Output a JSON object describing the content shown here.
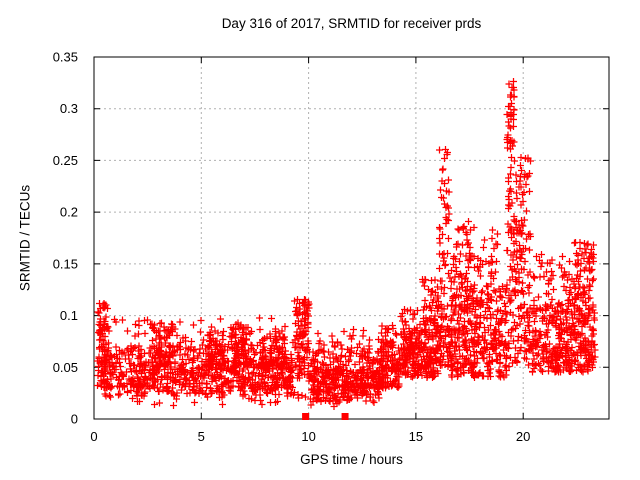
{
  "chart_data": {
    "type": "scatter",
    "title": "Day 316 of 2017, SRMTID for receiver prds",
    "xlabel": "GPS time / hours",
    "ylabel": "SRMTID / TECUs",
    "xlim": [
      0,
      24
    ],
    "ylim": [
      0,
      0.35
    ],
    "x_ticks": [
      {
        "v": 0,
        "label": "0"
      },
      {
        "v": 5,
        "label": "5"
      },
      {
        "v": 10,
        "label": "10"
      },
      {
        "v": 15,
        "label": "15"
      },
      {
        "v": 20,
        "label": "20"
      }
    ],
    "y_ticks": [
      {
        "v": 0,
        "label": "0"
      },
      {
        "v": 0.05,
        "label": "0.05"
      },
      {
        "v": 0.1,
        "label": "0.1"
      },
      {
        "v": 0.15,
        "label": "0.15"
      },
      {
        "v": 0.2,
        "label": "0.2"
      },
      {
        "v": 0.25,
        "label": "0.25"
      },
      {
        "v": 0.3,
        "label": "0.3"
      },
      {
        "v": 0.35,
        "label": "0.35"
      }
    ],
    "grid": true,
    "legend": false,
    "colors": {
      "marker": "#ff0000",
      "grid": "#b0b0b0",
      "axis": "#000000",
      "background": "#ffffff"
    },
    "marker": {
      "shape": "plus",
      "size": 7
    },
    "flag_points": {
      "shape": "filled-square",
      "size": 7,
      "points": [
        [
          9.86,
          0
        ],
        [
          11.7,
          0
        ]
      ]
    },
    "seed": 316,
    "point_clusters": [
      {
        "x0": 0.15,
        "x1": 0.68,
        "n": 70,
        "bands": [
          [
            0.032,
            0.07,
            0.5
          ],
          [
            0.07,
            0.1,
            0.3
          ],
          [
            0.1,
            0.112,
            0.2
          ]
        ]
      },
      {
        "x0": 0.3,
        "x1": 9.3,
        "n": 850,
        "bands": [
          [
            0.03,
            0.055,
            0.58
          ],
          [
            0.022,
            0.032,
            0.13
          ],
          [
            0.055,
            0.072,
            0.2
          ],
          [
            0.072,
            0.098,
            0.09
          ]
        ]
      },
      {
        "x0": 2.7,
        "x1": 3.7,
        "n": 70,
        "bands": [
          [
            0.05,
            0.075,
            0.6
          ],
          [
            0.075,
            0.093,
            0.4
          ]
        ]
      },
      {
        "x0": 5.3,
        "x1": 6.1,
        "n": 50,
        "bands": [
          [
            0.048,
            0.065,
            0.7
          ],
          [
            0.065,
            0.082,
            0.3
          ]
        ]
      },
      {
        "x0": 6.4,
        "x1": 7.15,
        "n": 55,
        "bands": [
          [
            0.05,
            0.07,
            0.6
          ],
          [
            0.07,
            0.092,
            0.4
          ]
        ]
      },
      {
        "x0": 7.6,
        "x1": 8.45,
        "n": 45,
        "bands": [
          [
            0.048,
            0.062,
            0.65
          ],
          [
            0.062,
            0.08,
            0.35
          ]
        ]
      },
      {
        "x0": 8.45,
        "x1": 9.0,
        "n": 35,
        "bands": [
          [
            0.05,
            0.07,
            0.6
          ],
          [
            0.07,
            0.09,
            0.4
          ]
        ]
      },
      {
        "x0": 9.35,
        "x1": 10.05,
        "n": 110,
        "bands": [
          [
            0.035,
            0.06,
            0.35
          ],
          [
            0.06,
            0.09,
            0.35
          ],
          [
            0.09,
            0.116,
            0.3
          ]
        ]
      },
      {
        "x0": 10.05,
        "x1": 13.3,
        "n": 400,
        "bands": [
          [
            0.025,
            0.048,
            0.6
          ],
          [
            0.016,
            0.025,
            0.14
          ],
          [
            0.048,
            0.066,
            0.19
          ],
          [
            0.066,
            0.088,
            0.07
          ]
        ]
      },
      {
        "x0": 13.3,
        "x1": 14.3,
        "n": 140,
        "bands": [
          [
            0.03,
            0.055,
            0.6
          ],
          [
            0.055,
            0.075,
            0.3
          ],
          [
            0.075,
            0.095,
            0.1
          ]
        ]
      },
      {
        "x0": 14.3,
        "x1": 15.2,
        "n": 140,
        "bands": [
          [
            0.04,
            0.065,
            0.5
          ],
          [
            0.065,
            0.085,
            0.33
          ],
          [
            0.085,
            0.106,
            0.17
          ]
        ]
      },
      {
        "x0": 15.2,
        "x1": 16.05,
        "n": 150,
        "bands": [
          [
            0.04,
            0.07,
            0.45
          ],
          [
            0.07,
            0.1,
            0.35
          ],
          [
            0.1,
            0.136,
            0.2
          ]
        ]
      },
      {
        "x0": 16.05,
        "x1": 16.55,
        "n": 95,
        "bands": [
          [
            0.05,
            0.1,
            0.34
          ],
          [
            0.1,
            0.16,
            0.25
          ],
          [
            0.16,
            0.22,
            0.2
          ],
          [
            0.22,
            0.262,
            0.21
          ]
        ]
      },
      {
        "x0": 16.55,
        "x1": 18.85,
        "n": 380,
        "bands": [
          [
            0.04,
            0.08,
            0.44
          ],
          [
            0.08,
            0.12,
            0.33
          ],
          [
            0.12,
            0.16,
            0.17
          ],
          [
            0.16,
            0.186,
            0.06
          ]
        ]
      },
      {
        "x0": 17.3,
        "x1": 17.55,
        "n": 16,
        "bands": [
          [
            0.1,
            0.15,
            0.5
          ],
          [
            0.15,
            0.192,
            0.5
          ]
        ]
      },
      {
        "x0": 18.85,
        "x1": 19.25,
        "n": 60,
        "bands": [
          [
            0.04,
            0.08,
            0.5
          ],
          [
            0.08,
            0.13,
            0.5
          ]
        ]
      },
      {
        "x0": 19.25,
        "x1": 19.58,
        "n": 90,
        "bands": [
          [
            0.05,
            0.15,
            0.24
          ],
          [
            0.15,
            0.26,
            0.32
          ],
          [
            0.26,
            0.305,
            0.34
          ],
          [
            0.305,
            0.327,
            0.1
          ]
        ]
      },
      {
        "x0": 19.58,
        "x1": 20.35,
        "n": 140,
        "bands": [
          [
            0.05,
            0.12,
            0.4
          ],
          [
            0.12,
            0.2,
            0.42
          ],
          [
            0.2,
            0.253,
            0.18
          ]
        ]
      },
      {
        "x0": 20.35,
        "x1": 23.35,
        "n": 430,
        "bands": [
          [
            0.045,
            0.075,
            0.44
          ],
          [
            0.075,
            0.11,
            0.38
          ],
          [
            0.11,
            0.145,
            0.13
          ],
          [
            0.145,
            0.16,
            0.05
          ]
        ]
      },
      {
        "x0": 22.1,
        "x1": 23.3,
        "n": 60,
        "bands": [
          [
            0.1,
            0.135,
            0.5
          ],
          [
            0.135,
            0.172,
            0.5
          ]
        ]
      },
      {
        "x0": 0.6,
        "x1": 13.0,
        "n": 55,
        "bands": [
          [
            0.012,
            0.022,
            0.6
          ],
          [
            0.022,
            0.03,
            0.4
          ]
        ]
      }
    ]
  }
}
